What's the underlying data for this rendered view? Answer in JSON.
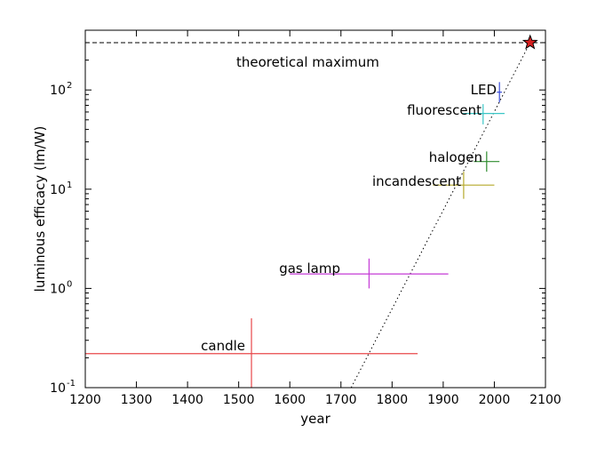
{
  "chart_data": {
    "type": "scatter",
    "xlabel": "year",
    "ylabel": "luminous efficacy (lm/W)",
    "xlim": [
      1200,
      2100
    ],
    "ylim": [
      0.1,
      400
    ],
    "yscale": "log",
    "grid": false,
    "x_ticks": [
      "1200",
      "1300",
      "1400",
      "1500",
      "1600",
      "1700",
      "1800",
      "1900",
      "2000",
      "2100"
    ],
    "y_ticks": [
      {
        "value": 0.1,
        "base": "10",
        "exp": "-1"
      },
      {
        "value": 1,
        "base": "10",
        "exp": "0"
      },
      {
        "value": 10,
        "base": "10",
        "exp": "1"
      },
      {
        "value": 100,
        "base": "10",
        "exp": "2"
      }
    ],
    "points": [
      {
        "label": "candle",
        "x": 1525,
        "xerr": [
          1200,
          1850
        ],
        "y": 0.22,
        "yerr": [
          0.1,
          0.5
        ],
        "color": "#e8474a"
      },
      {
        "label": "gas lamp",
        "x": 1755,
        "xerr": [
          1600,
          1910
        ],
        "y": 1.4,
        "yerr": [
          1.0,
          2.0
        ],
        "color": "#c43ad6"
      },
      {
        "label": "incandescent",
        "x": 1940,
        "xerr": [
          1880,
          2000
        ],
        "y": 11,
        "yerr": [
          8,
          15
        ],
        "color": "#b5a82a"
      },
      {
        "label": "halogen",
        "x": 1985,
        "xerr": [
          1960,
          2010
        ],
        "y": 19,
        "yerr": [
          15,
          24
        ],
        "color": "#2e8b2e"
      },
      {
        "label": "fluorescent",
        "x": 1978,
        "xerr": [
          1938,
          2020
        ],
        "y": 58,
        "yerr": [
          45,
          72
        ],
        "color": "#3cc7c7"
      },
      {
        "label": "LED",
        "x": 2010,
        "xerr": [
          2005,
          2015
        ],
        "y": 95,
        "yerr": [
          75,
          120
        ],
        "color": "#3a4fd8"
      }
    ],
    "theoretical_max": {
      "label": "theoretical maximum",
      "y": 300,
      "star_x": 2070,
      "star_color": "#d62020"
    },
    "trend_line": {
      "x": [
        1720,
        2070
      ],
      "y": [
        0.1,
        300
      ]
    }
  }
}
